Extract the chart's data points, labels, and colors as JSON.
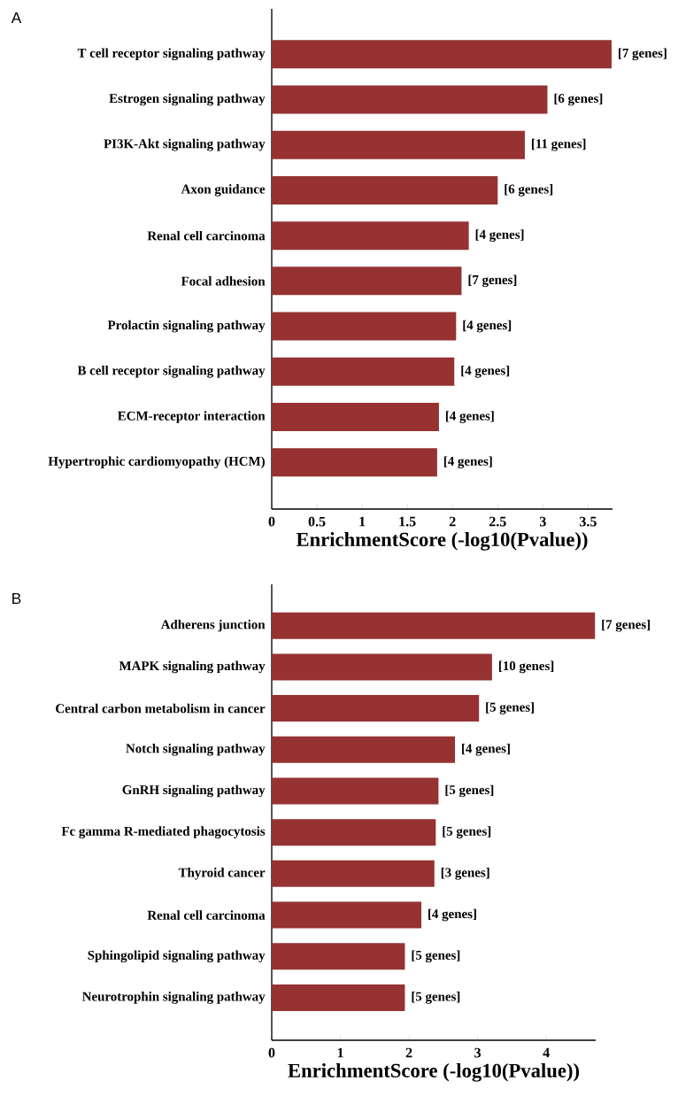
{
  "chart_data": [
    {
      "type": "bar",
      "orientation": "horizontal",
      "title": "A",
      "xlabel": "EnrichmentScore (-log10(Pvalue))",
      "categories": [
        "T cell receptor signaling pathway",
        "Estrogen signaling pathway",
        "PI3K-Akt signaling pathway",
        "Axon guidance",
        "Renal cell carcinoma",
        "Focal adhesion",
        "Prolactin signaling pathway",
        "B cell receptor signaling pathway",
        "ECM-receptor interaction",
        "Hypertrophic cardiomyopathy (HCM)"
      ],
      "values": [
        3.76,
        3.05,
        2.8,
        2.5,
        2.18,
        2.1,
        2.04,
        2.02,
        1.85,
        1.83
      ],
      "annotations": [
        {
          "text": "[7 genes]",
          "x": 3.76,
          "y": "T cell receptor signaling pathway"
        },
        {
          "text": "[6 genes]",
          "x": 3.05,
          "y": "Estrogen signaling pathway"
        },
        {
          "text": "[11 genes]",
          "x": 2.8,
          "y": "PI3K-Akt signaling pathway"
        },
        {
          "text": "[6 genes]",
          "x": 2.5,
          "y": "Axon guidance"
        },
        {
          "text": "[4 genes]",
          "x": 2.18,
          "y": "Renal cell carcinoma"
        },
        {
          "text": "[7 genes]",
          "x": 2.1,
          "y": "Focal adhesion"
        },
        {
          "text": "[4 genes]",
          "x": 2.04,
          "y": "Prolactin signaling pathway"
        },
        {
          "text": "[4 genes]",
          "x": 2.02,
          "y": "B cell receptor signaling pathway"
        },
        {
          "text": "[4 genes]",
          "x": 1.85,
          "y": "ECM-receptor interaction"
        },
        {
          "text": "[4 genes]",
          "x": 1.83,
          "y": "Hypertrophic cardiomyopathy (HCM)"
        }
      ],
      "color": "#963232",
      "xlim": [
        0,
        3.77
      ],
      "xticks": [
        0,
        0.5,
        1,
        1.5,
        2,
        2.5,
        3,
        3.5
      ],
      "grid": false
    },
    {
      "type": "bar",
      "orientation": "horizontal",
      "title": "B",
      "xlabel": "EnrichmentScore (-log10(Pvalue))",
      "categories": [
        "Adherens junction",
        "MAPK signaling pathway",
        "Central carbon metabolism in cancer",
        "Notch signaling pathway",
        "GnRH signaling pathway",
        "Fc gamma R-mediated phagocytosis",
        "Thyroid cancer",
        "Renal cell carcinoma",
        "Sphingolipid signaling pathway",
        "Neurotrophin signaling pathway"
      ],
      "values": [
        4.71,
        3.21,
        3.02,
        2.67,
        2.43,
        2.39,
        2.37,
        2.18,
        1.94,
        1.94
      ],
      "annotations": [
        {
          "text": "[7 genes]",
          "x": 4.71,
          "y": "Adherens junction"
        },
        {
          "text": "[10 genes]",
          "x": 3.21,
          "y": "MAPK signaling pathway"
        },
        {
          "text": "[5 genes]",
          "x": 3.02,
          "y": "Central carbon metabolism in cancer"
        },
        {
          "text": "[4 genes]",
          "x": 2.67,
          "y": "Notch signaling pathway"
        },
        {
          "text": "[5 genes]",
          "x": 2.43,
          "y": "GnRH signaling pathway"
        },
        {
          "text": "[5 genes]",
          "x": 2.39,
          "y": "Fc gamma R-mediated phagocytosis"
        },
        {
          "text": "[3 genes]",
          "x": 2.37,
          "y": "Thyroid cancer"
        },
        {
          "text": "[4 genes]",
          "x": 2.18,
          "y": "Renal cell carcinoma"
        },
        {
          "text": "[5 genes]",
          "x": 1.94,
          "y": "Sphingolipid signaling pathway"
        },
        {
          "text": "[5 genes]",
          "x": 1.94,
          "y": "Neurotrophin signaling pathway"
        }
      ],
      "color": "#963232",
      "xlim": [
        0,
        4.72
      ],
      "xticks": [
        0,
        1,
        2,
        3,
        4
      ],
      "grid": false
    }
  ]
}
